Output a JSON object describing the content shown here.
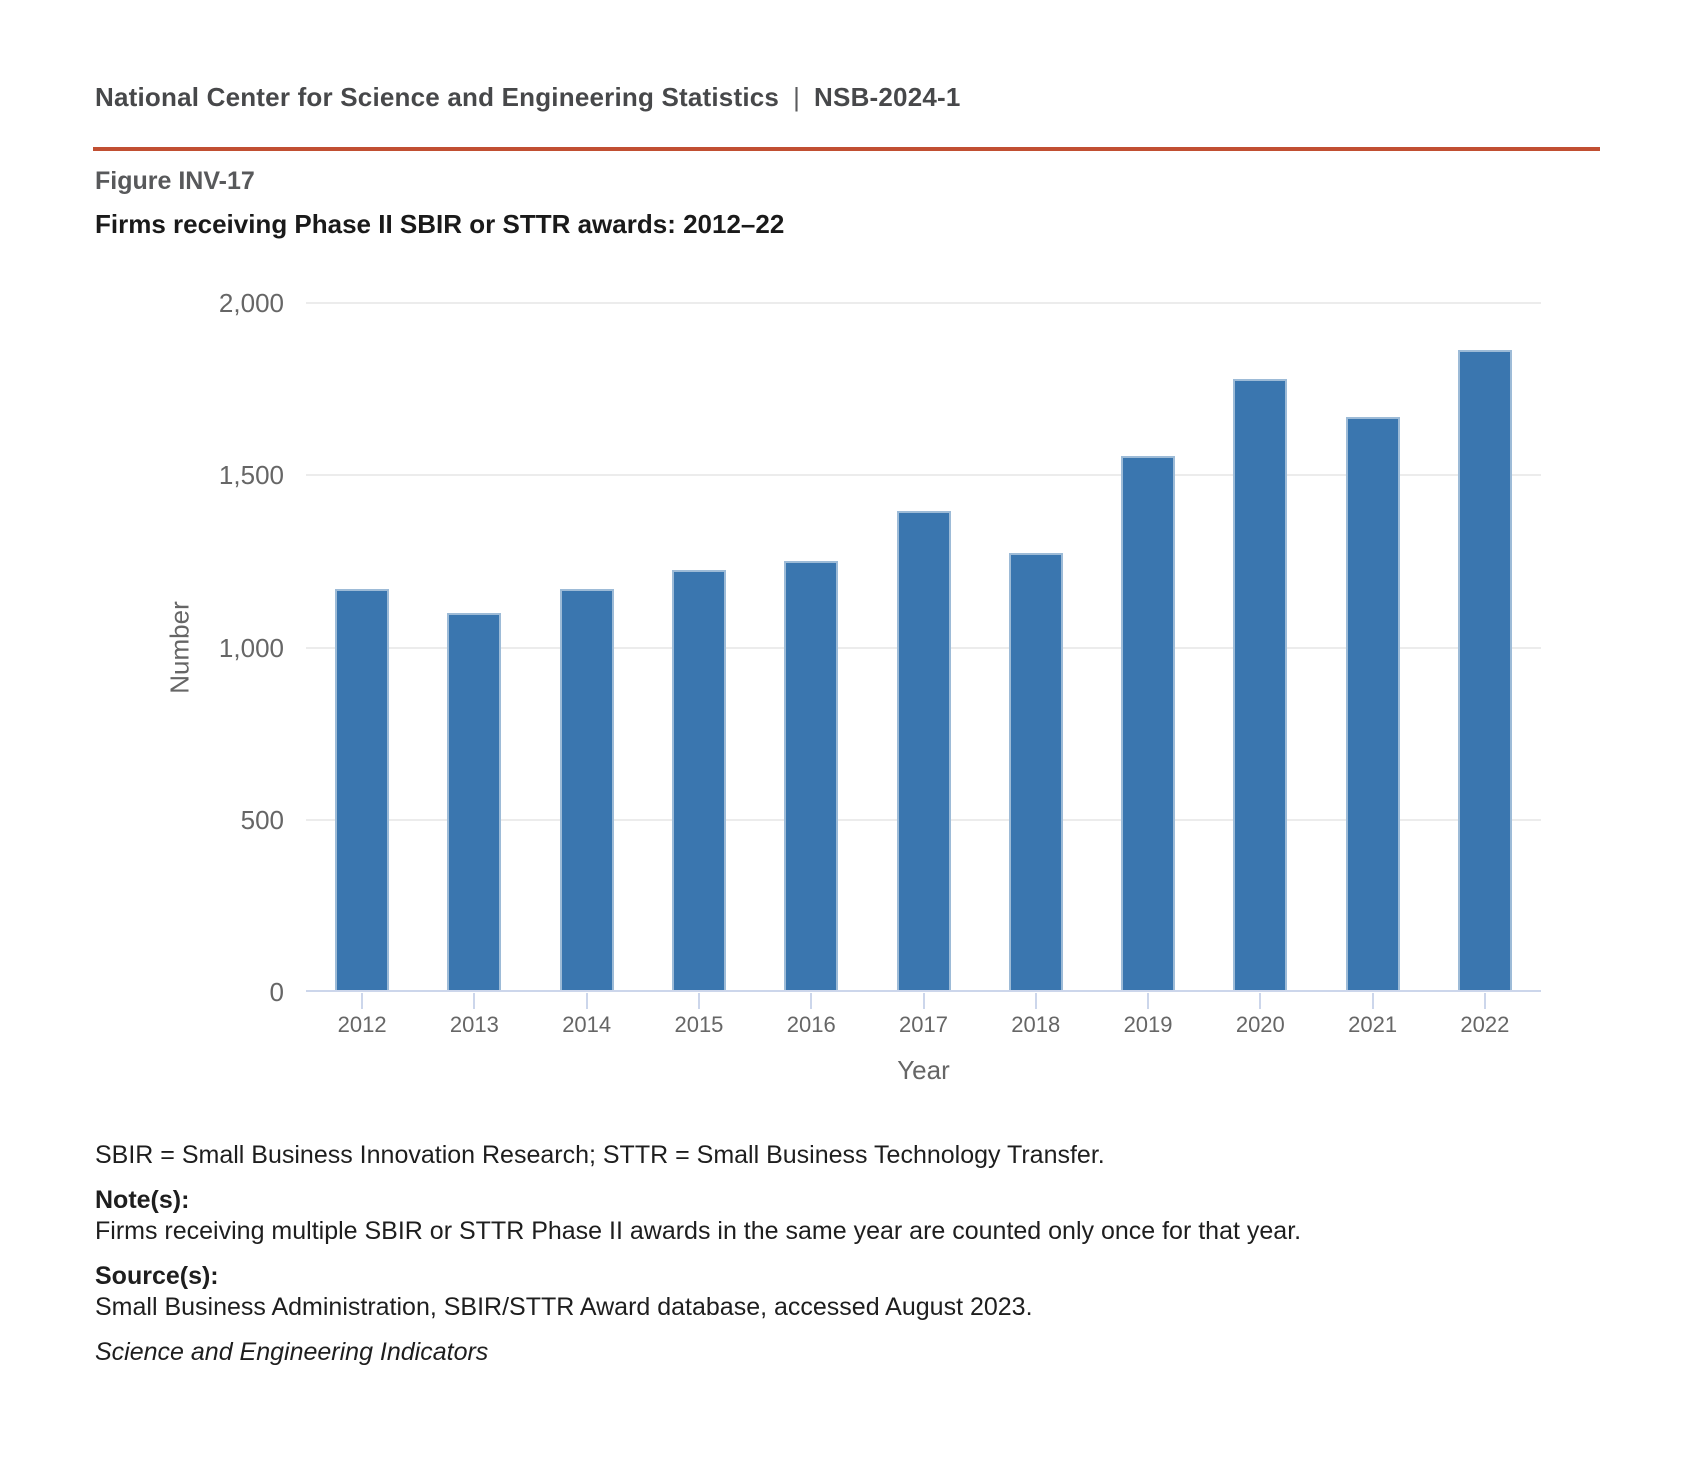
{
  "header": {
    "org": "National Center for Science and Engineering Statistics",
    "divider": "|",
    "report_id": "NSB-2024-1",
    "rule_color": "#C14F32"
  },
  "figure": {
    "label": "Figure INV-17",
    "title": "Firms receiving Phase II SBIR or STTR awards: 2012–22"
  },
  "chart_data": {
    "type": "bar",
    "title": "Firms receiving Phase II SBIR or STTR awards: 2012–22",
    "categories": [
      "2012",
      "2013",
      "2014",
      "2015",
      "2016",
      "2017",
      "2018",
      "2019",
      "2020",
      "2021",
      "2022"
    ],
    "values": [
      1170,
      1100,
      1170,
      1225,
      1250,
      1395,
      1275,
      1555,
      1780,
      1670,
      1865
    ],
    "xlabel": "Year",
    "ylabel": "Number",
    "ylim": [
      0,
      2000
    ],
    "yticks": [
      0,
      500,
      1000,
      1500,
      2000
    ],
    "ytick_labels": [
      "0",
      "500",
      "1,000",
      "1,500",
      "2,000"
    ],
    "grid": true,
    "legend": false,
    "bar_color": "#3A76AF",
    "axis_line_color": "#CCD6EB",
    "gridline_color": "#ECECEC",
    "tick_label_color": "#666666"
  },
  "footnotes": {
    "abbreviations": "SBIR = Small Business Innovation Research; STTR = Small Business Technology Transfer.",
    "notes_label": "Note(s):",
    "notes_text": "Firms receiving multiple SBIR or STTR Phase II awards in the same year are counted only once for that year.",
    "source_label": "Source(s):",
    "source_text": "Small Business Administration, SBIR/STTR Award database, accessed August 2023.",
    "publication": "Science and Engineering Indicators"
  }
}
